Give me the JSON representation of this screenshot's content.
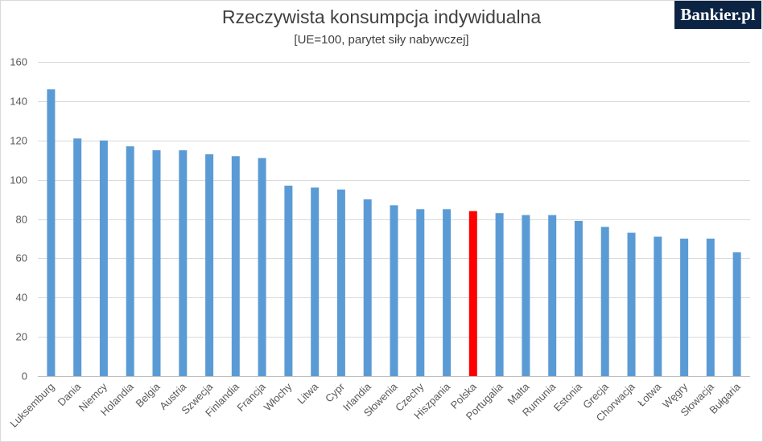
{
  "logo": {
    "text": "Bankier.pl"
  },
  "chart_data": {
    "type": "bar",
    "title": "Rzeczywista konsumpcja indywidualna",
    "subtitle": "[UE=100, parytet siły nabywczej]",
    "xlabel": "",
    "ylabel": "",
    "ylim": [
      0,
      160
    ],
    "yticks": [
      0,
      20,
      40,
      60,
      80,
      100,
      120,
      140,
      160
    ],
    "grid": true,
    "legend": "none",
    "bar_color": "#5b9bd5",
    "highlight_color": "#ff0000",
    "highlight_category": "Polska",
    "categories": [
      "Luksemburg",
      "Dania",
      "Niemcy",
      "Holandia",
      "Belgia",
      "Austria",
      "Szwecja",
      "Finlandia",
      "Francja",
      "Włochy",
      "Litwa",
      "Cypr",
      "Irlandia",
      "Słowenia",
      "Czechy",
      "Hiszpania",
      "Polska",
      "Portugalia",
      "Malta",
      "Rumunia",
      "Estonia",
      "Grecja",
      "Chorwacja",
      "Łotwa",
      "Węgry",
      "Słowacja",
      "Bułgaria"
    ],
    "values": [
      146,
      121,
      120,
      117,
      115,
      115,
      113,
      112,
      111,
      97,
      96,
      95,
      90,
      87,
      85,
      85,
      84,
      83,
      82,
      82,
      79,
      76,
      73,
      71,
      70,
      70,
      63
    ]
  }
}
